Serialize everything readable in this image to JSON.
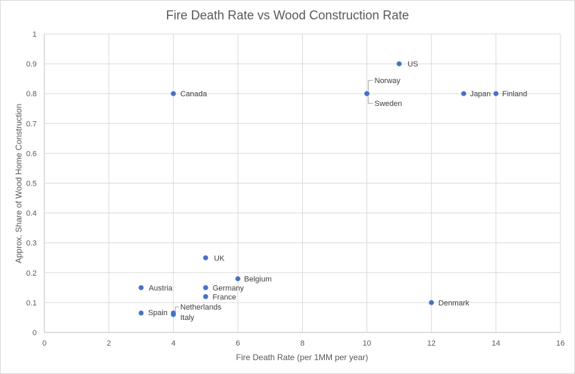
{
  "chart_data": {
    "type": "scatter",
    "title": "Fire Death Rate vs Wood Construction Rate",
    "xlabel": "Fire Death Rate (per 1MM per year)",
    "ylabel": "Approx. Share of Wood Home Construction",
    "xlim": [
      0,
      16
    ],
    "ylim": [
      0,
      1
    ],
    "xticks": [
      0,
      2,
      4,
      6,
      8,
      10,
      12,
      14,
      16
    ],
    "yticks": [
      0,
      0.1,
      0.2,
      0.3,
      0.4,
      0.5,
      0.6,
      0.7,
      0.8,
      0.9,
      1
    ],
    "grid": "vertical and horizontal major gridlines",
    "marker_color": "#4472c4",
    "points": [
      {
        "label": "US",
        "x": 11,
        "y": 0.9
      },
      {
        "label": "Norway",
        "x": 10,
        "y": 0.8
      },
      {
        "label": "Sweden",
        "x": 10,
        "y": 0.8
      },
      {
        "label": "Japan",
        "x": 13,
        "y": 0.8
      },
      {
        "label": "Finland",
        "x": 14,
        "y": 0.8
      },
      {
        "label": "Canada",
        "x": 4,
        "y": 0.8
      },
      {
        "label": "UK",
        "x": 5,
        "y": 0.25
      },
      {
        "label": "Belgium",
        "x": 6,
        "y": 0.18
      },
      {
        "label": "Austria",
        "x": 3,
        "y": 0.15
      },
      {
        "label": "Germany",
        "x": 5,
        "y": 0.15
      },
      {
        "label": "France",
        "x": 5,
        "y": 0.12
      },
      {
        "label": "Denmark",
        "x": 12,
        "y": 0.1
      },
      {
        "label": "Netherlands",
        "x": 4,
        "y": 0.065
      },
      {
        "label": "Spain",
        "x": 3,
        "y": 0.065
      },
      {
        "label": "Italy",
        "x": 4,
        "y": 0.06
      }
    ]
  }
}
